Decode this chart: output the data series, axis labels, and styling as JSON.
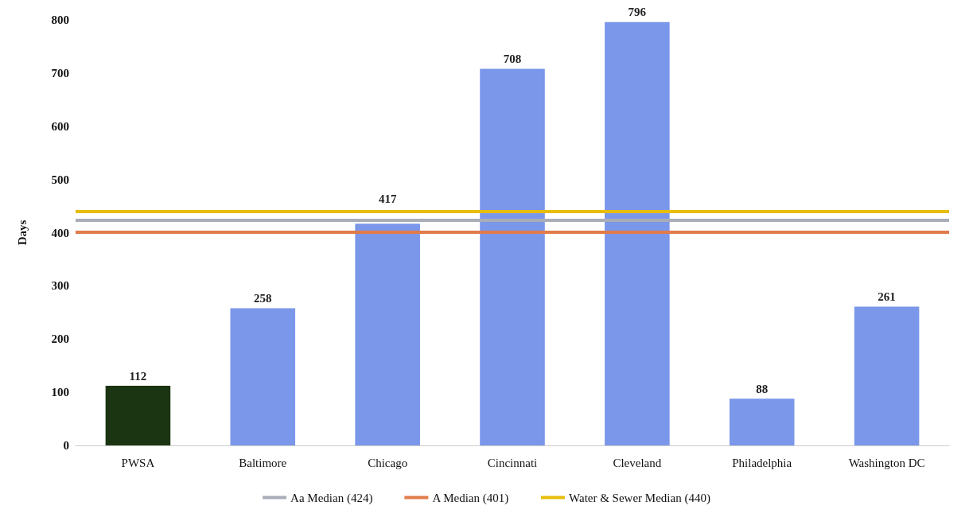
{
  "chart_data": {
    "type": "bar",
    "ylabel": "Days",
    "categories": [
      "PWSA",
      "Baltimore",
      "Chicago",
      "Cincinnati",
      "Cleveland",
      "Philadelphia",
      "Washington DC"
    ],
    "values": [
      112,
      258,
      417,
      708,
      796,
      88,
      261
    ],
    "colors": [
      "#1b3512",
      "#7b97ea",
      "#7b97ea",
      "#7b97ea",
      "#7b97ea",
      "#7b97ea",
      "#7b97ea"
    ],
    "data_labels": true,
    "ylim": [
      0,
      800
    ],
    "yticks": [
      0,
      100,
      200,
      300,
      400,
      500,
      600,
      700,
      800
    ],
    "grid": false,
    "legend": "bottom",
    "ref_lines": [
      {
        "axis": "y",
        "value": 424,
        "label": "Aa Median (424)",
        "color": "#a9adb8"
      },
      {
        "axis": "y",
        "value": 401,
        "label": "A Median (401)",
        "color": "#e07b4a"
      },
      {
        "axis": "y",
        "value": 440,
        "label": "Water & Sewer Median (440)",
        "color": "#e6bd0a"
      }
    ]
  }
}
